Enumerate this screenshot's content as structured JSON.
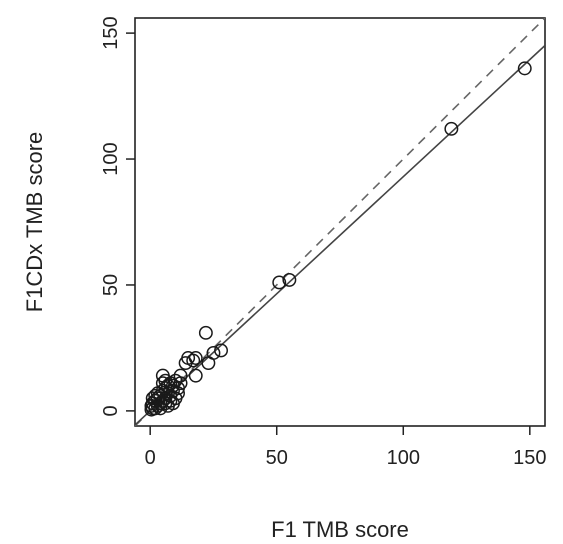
{
  "chart_data": {
    "type": "scatter",
    "title": "",
    "xlabel": "F1 TMB score",
    "ylabel": "F1CDx TMB score",
    "xlim": [
      -6,
      156
    ],
    "ylim": [
      -6,
      156
    ],
    "xticks": [
      0,
      50,
      100,
      150
    ],
    "yticks": [
      0,
      50,
      100,
      150
    ],
    "grid": false,
    "legend": "none",
    "points": [
      {
        "x": 148,
        "y": 136
      },
      {
        "x": 119,
        "y": 112
      },
      {
        "x": 55,
        "y": 52
      },
      {
        "x": 51,
        "y": 51
      },
      {
        "x": 22,
        "y": 31
      },
      {
        "x": 28,
        "y": 24
      },
      {
        "x": 25,
        "y": 23
      },
      {
        "x": 23,
        "y": 19
      },
      {
        "x": 18,
        "y": 21
      },
      {
        "x": 17,
        "y": 20
      },
      {
        "x": 15,
        "y": 21
      },
      {
        "x": 14,
        "y": 19
      },
      {
        "x": 18,
        "y": 14
      },
      {
        "x": 12,
        "y": 14
      },
      {
        "x": 5,
        "y": 14
      },
      {
        "x": 12,
        "y": 11
      },
      {
        "x": 10,
        "y": 12
      },
      {
        "x": 11,
        "y": 7
      },
      {
        "x": 9,
        "y": 10
      },
      {
        "x": 8,
        "y": 11
      },
      {
        "x": 7,
        "y": 10
      },
      {
        "x": 9,
        "y": 8
      },
      {
        "x": 8,
        "y": 6
      },
      {
        "x": 6,
        "y": 9
      },
      {
        "x": 7,
        "y": 7
      },
      {
        "x": 5,
        "y": 8
      },
      {
        "x": 6,
        "y": 5
      },
      {
        "x": 10,
        "y": 5
      },
      {
        "x": 4,
        "y": 6
      },
      {
        "x": 5,
        "y": 4
      },
      {
        "x": 3,
        "y": 5
      },
      {
        "x": 4,
        "y": 3
      },
      {
        "x": 6,
        "y": 3
      },
      {
        "x": 2,
        "y": 4
      },
      {
        "x": 3,
        "y": 2
      },
      {
        "x": 1,
        "y": 3
      },
      {
        "x": 2,
        "y": 1
      },
      {
        "x": 1,
        "y": 1
      },
      {
        "x": 0.5,
        "y": 2
      },
      {
        "x": 4,
        "y": 1
      },
      {
        "x": 7,
        "y": 2
      },
      {
        "x": 9,
        "y": 3
      },
      {
        "x": 3,
        "y": 7
      },
      {
        "x": 2,
        "y": 6
      },
      {
        "x": 5,
        "y": 11
      },
      {
        "x": 8,
        "y": 4
      },
      {
        "x": 6,
        "y": 12
      },
      {
        "x": 11,
        "y": 9
      },
      {
        "x": 1,
        "y": 5
      },
      {
        "x": 0.5,
        "y": 0.5
      }
    ],
    "lines": [
      {
        "style": "dashed",
        "kind": "identity",
        "slope": 1,
        "intercept": 0
      },
      {
        "style": "solid",
        "kind": "fit",
        "slope": 0.93,
        "intercept": 0
      }
    ]
  }
}
